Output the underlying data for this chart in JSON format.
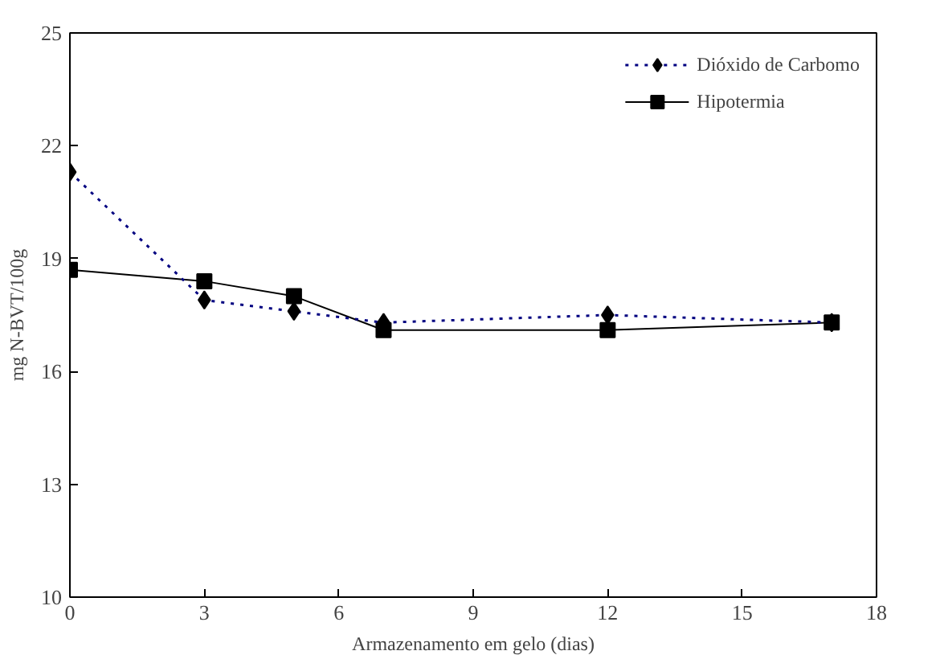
{
  "chart_data": {
    "type": "line",
    "xlabel": "Armazenamento em gelo (dias)",
    "ylabel": "mg N-BVT/100g",
    "x": [
      0,
      3,
      5,
      7,
      12,
      17
    ],
    "series": [
      {
        "name": "Dióxido de Carbomo",
        "color": "#000080",
        "values": [
          21.3,
          17.9,
          17.6,
          17.3,
          17.5,
          17.3
        ],
        "marker": "diamond",
        "line_style": "dotted"
      },
      {
        "name": "Hipotermia",
        "color": "#000000",
        "values": [
          18.7,
          18.4,
          18.0,
          17.1,
          17.1,
          17.3
        ],
        "marker": "square",
        "line_style": "solid"
      }
    ],
    "xlim": [
      0,
      18
    ],
    "xticks": [
      0,
      3,
      6,
      9,
      12,
      15,
      18
    ],
    "ylim": [
      10,
      25
    ],
    "yticks": [
      10,
      13,
      16,
      19,
      22,
      25
    ],
    "grid": false,
    "legend": "top right"
  }
}
